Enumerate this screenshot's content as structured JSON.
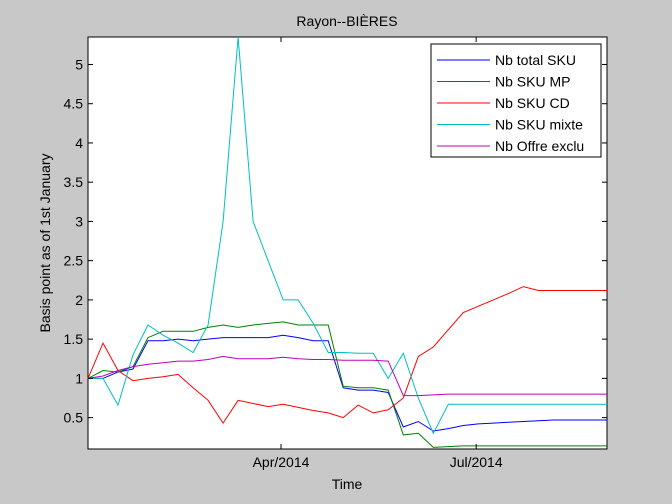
{
  "chart_data": {
    "type": "line",
    "title": "Rayon--BIÈRES",
    "xlabel": "Time",
    "ylabel": "Basis point as of 1st January",
    "xlim": [
      "2014-01-01",
      "2014-08-31"
    ],
    "ylim": [
      0.1,
      5.35
    ],
    "xticks": [
      {
        "value": "2014-04-01",
        "label": "Apr/2014"
      },
      {
        "value": "2014-07-01",
        "label": "Jul/2014"
      }
    ],
    "yticks": [
      {
        "value": 0.5,
        "label": "0.5"
      },
      {
        "value": 1,
        "label": "1"
      },
      {
        "value": 1.5,
        "label": "1.5"
      },
      {
        "value": 2,
        "label": "2"
      },
      {
        "value": 2.5,
        "label": "2.5"
      },
      {
        "value": 3,
        "label": "3"
      },
      {
        "value": 3.5,
        "label": "3.5"
      },
      {
        "value": 4,
        "label": "4"
      },
      {
        "value": 4.5,
        "label": "4.5"
      },
      {
        "value": 5,
        "label": "5"
      }
    ],
    "grid": false,
    "legend_position": "top-right",
    "x": [
      "2014-01-01",
      "2014-01-08",
      "2014-01-15",
      "2014-01-22",
      "2014-01-29",
      "2014-02-05",
      "2014-02-12",
      "2014-02-19",
      "2014-02-26",
      "2014-03-05",
      "2014-03-12",
      "2014-03-19",
      "2014-03-26",
      "2014-04-02",
      "2014-04-09",
      "2014-04-16",
      "2014-04-23",
      "2014-04-30",
      "2014-05-07",
      "2014-05-14",
      "2014-05-21",
      "2014-05-28",
      "2014-06-04",
      "2014-06-11",
      "2014-06-18",
      "2014-06-25",
      "2014-07-02",
      "2014-07-09",
      "2014-07-16",
      "2014-07-23",
      "2014-07-30",
      "2014-08-06",
      "2014-08-13",
      "2014-08-20",
      "2014-08-27",
      "2014-08-31"
    ],
    "series": [
      {
        "name": "Nb total SKU",
        "color": "#0000ff",
        "values": [
          1.0,
          1.0,
          1.08,
          1.12,
          1.48,
          1.48,
          1.5,
          1.48,
          1.5,
          1.52,
          1.52,
          1.52,
          1.52,
          1.55,
          1.52,
          1.48,
          1.48,
          0.88,
          0.85,
          0.85,
          0.82,
          0.38,
          0.45,
          0.33,
          0.36,
          0.4,
          0.42,
          0.43,
          0.44,
          0.45,
          0.46,
          0.47,
          0.47,
          0.47,
          0.47,
          0.47
        ]
      },
      {
        "name": "Nb SKU MP",
        "color": "#008000",
        "values": [
          1.0,
          1.1,
          1.08,
          1.15,
          1.52,
          1.6,
          1.6,
          1.6,
          1.65,
          1.68,
          1.65,
          1.68,
          1.7,
          1.72,
          1.68,
          1.68,
          1.68,
          0.9,
          0.88,
          0.88,
          0.85,
          0.28,
          0.3,
          0.12,
          0.13,
          0.14,
          0.14,
          0.14,
          0.14,
          0.14,
          0.14,
          0.14,
          0.14,
          0.14,
          0.14,
          0.14
        ]
      },
      {
        "name": "Nb SKU CD",
        "color": "#ff0000",
        "values": [
          1.0,
          1.45,
          1.1,
          0.97,
          1.0,
          1.02,
          1.05,
          0.88,
          0.72,
          0.43,
          0.72,
          0.68,
          0.64,
          0.67,
          0.63,
          0.59,
          0.56,
          0.5,
          0.66,
          0.56,
          0.6,
          0.75,
          1.28,
          1.4,
          1.62,
          1.84,
          1.92,
          2.0,
          2.08,
          2.17,
          2.12,
          2.12,
          2.12,
          2.12,
          2.12,
          2.12
        ]
      },
      {
        "name": "Nb SKU mixte",
        "color": "#00bfbf",
        "values": [
          1.0,
          1.0,
          0.66,
          1.3,
          1.68,
          1.55,
          1.45,
          1.33,
          1.68,
          3.0,
          5.35,
          3.0,
          2.5,
          2.0,
          2.0,
          1.7,
          1.33,
          1.33,
          1.32,
          1.32,
          1.0,
          1.32,
          0.75,
          0.3,
          0.67,
          0.67,
          0.67,
          0.67,
          0.67,
          0.67,
          0.67,
          0.67,
          0.67,
          0.67,
          0.67,
          0.67
        ]
      },
      {
        "name": "Nb Offre exclu",
        "color": "#bf00bf",
        "values": [
          1.0,
          1.03,
          1.1,
          1.15,
          1.18,
          1.2,
          1.22,
          1.22,
          1.24,
          1.28,
          1.25,
          1.25,
          1.25,
          1.27,
          1.25,
          1.24,
          1.24,
          1.23,
          1.23,
          1.23,
          1.22,
          0.78,
          0.78,
          0.79,
          0.8,
          0.8,
          0.8,
          0.8,
          0.8,
          0.8,
          0.8,
          0.8,
          0.8,
          0.8,
          0.8,
          0.8
        ]
      }
    ]
  }
}
